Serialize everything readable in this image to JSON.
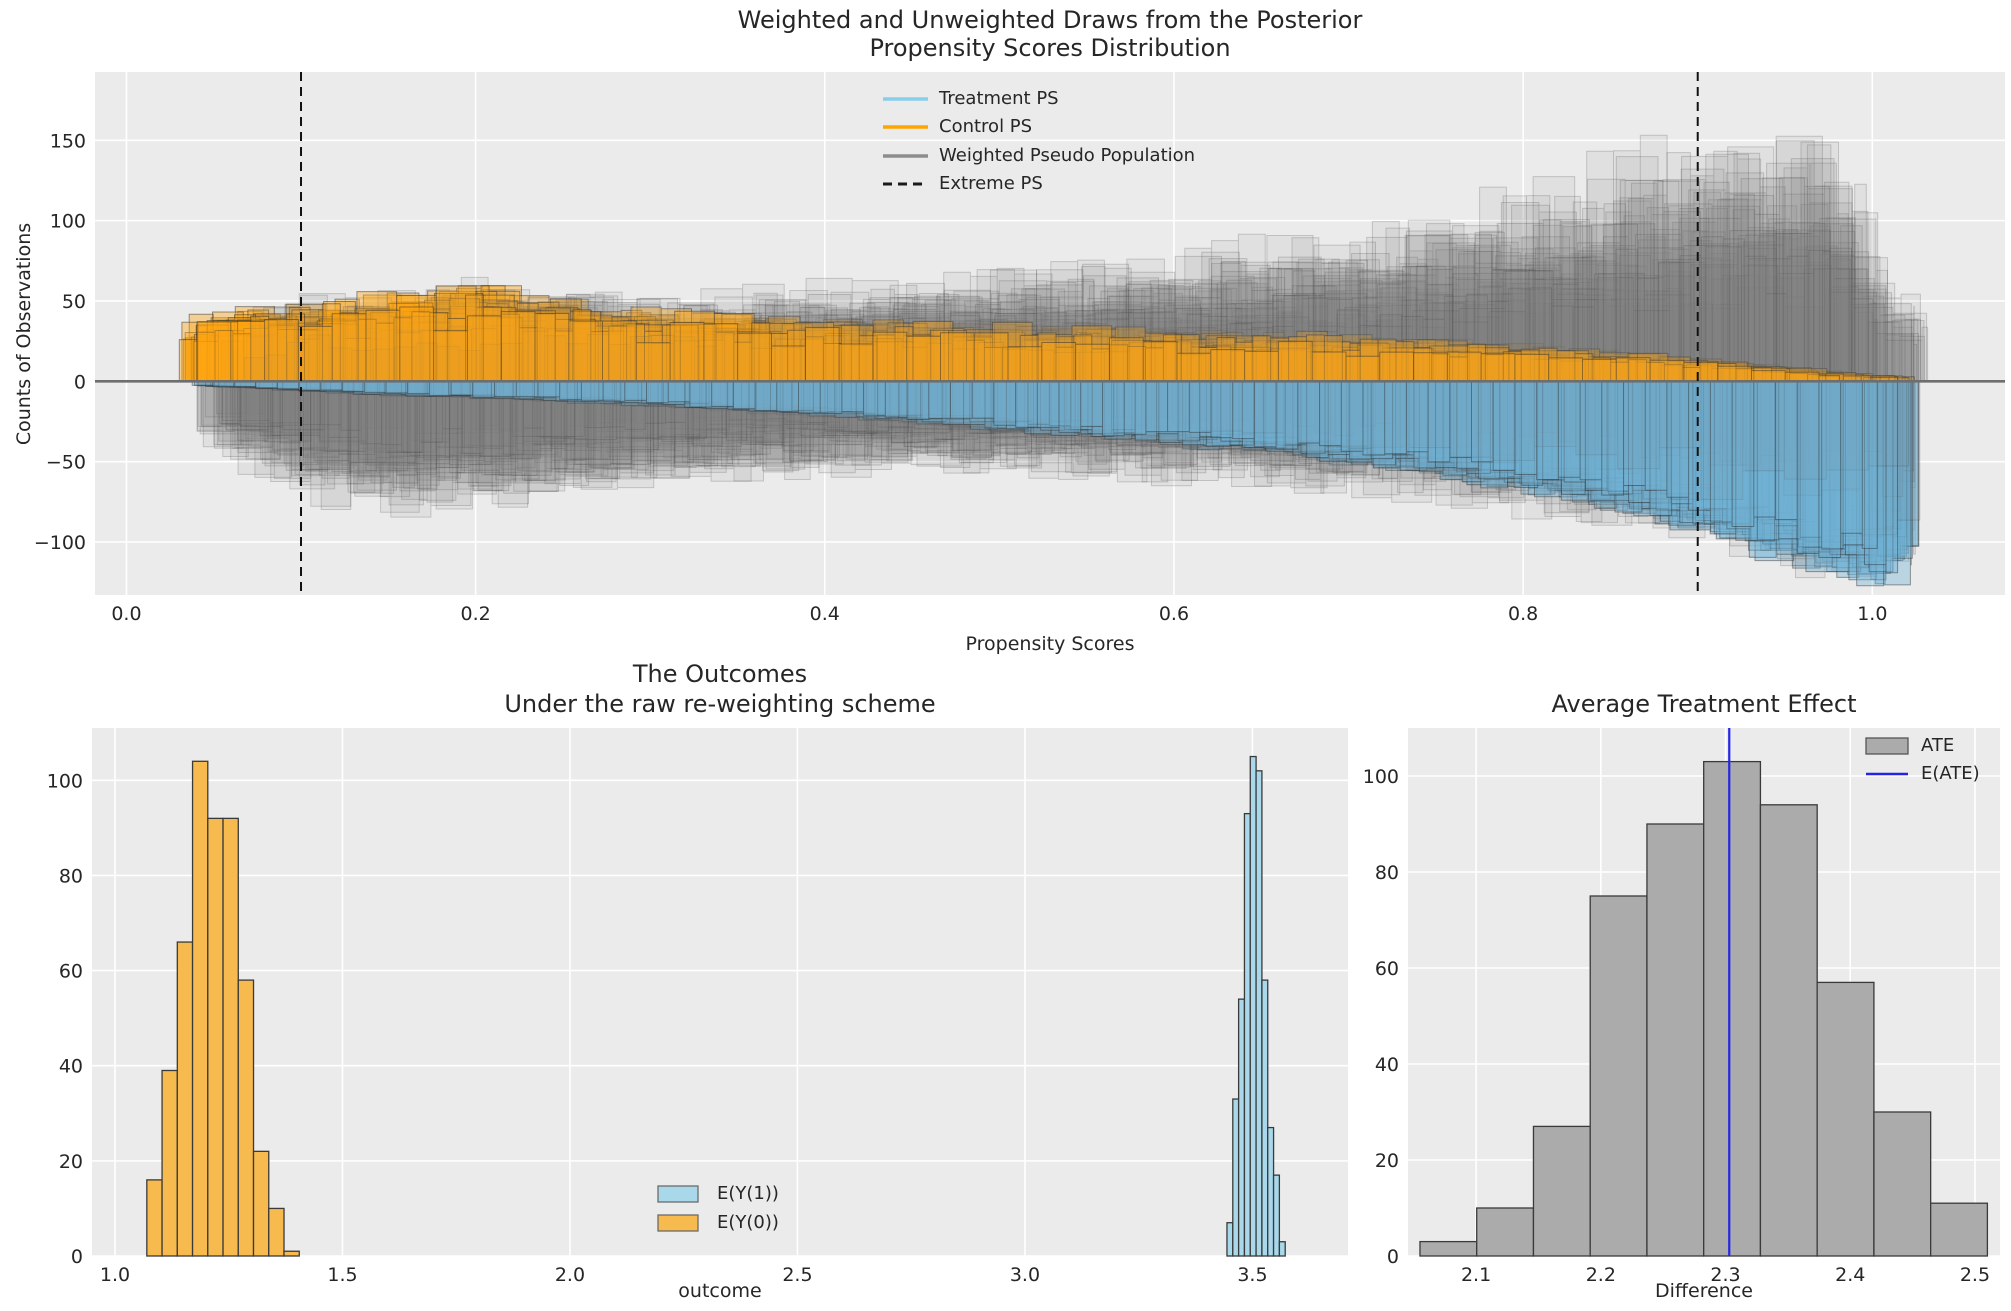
{
  "figure": {
    "background": "#ffffff",
    "axes_background": "#EBEBEB",
    "grid_color": "#ffffff",
    "text_color": "#262626",
    "render_seed": 9
  },
  "chart_data": [
    {
      "id": "ps_distribution",
      "type": "histogram-ensemble-mirror",
      "title_line1": "Weighted and Unweighted Draws from the Posterior",
      "title_line2": "Propensity Scores Distribution",
      "xlabel": "Propensity Scores",
      "ylabel": "Counts of Observations",
      "xlim": [
        -0.018,
        1.076
      ],
      "ylim": [
        -133,
        192.5
      ],
      "xticks": [
        0.0,
        0.2,
        0.4,
        0.6,
        0.8,
        1.0
      ],
      "xtick_labels": [
        "0.0",
        "0.2",
        "0.4",
        "0.6",
        "0.8",
        "1.0"
      ],
      "yticks": [
        -100,
        -50,
        0,
        50,
        100,
        150
      ],
      "ytick_labels": [
        "−100",
        "−50",
        "0",
        "50",
        "100",
        "150"
      ],
      "grid": true,
      "legend_position": "upper center",
      "legend": [
        {
          "label": "Treatment PS",
          "color": "#87CEEB",
          "type": "line"
        },
        {
          "label": "Control PS",
          "color": "#FFA500",
          "type": "line"
        },
        {
          "label": "Weighted Pseudo Population",
          "color": "#8C8C8C",
          "type": "line"
        },
        {
          "label": "Extreme PS",
          "color": "#1a1a1a",
          "type": "dashed-line"
        }
      ],
      "extreme_ps_lines": [
        0.1,
        0.9
      ],
      "zero_line": 0,
      "n_posterior_draws": 26,
      "series": {
        "control": {
          "name": "Control PS",
          "side": "up",
          "fill": "rgba(255,166,18,0.40)",
          "edge": "rgba(45,45,45,0.50)",
          "support": [
            0.03,
            1.0
          ],
          "start_jitter": 0.02,
          "end_jitter": 0.05,
          "binw_range": [
            0.01,
            0.026
          ],
          "draw_scale": [
            0.72,
            1.18
          ],
          "bin_scale": [
            0.72,
            1.18
          ],
          "envelope_x": [
            0.03,
            0.06,
            0.1,
            0.14,
            0.18,
            0.21,
            0.24,
            0.28,
            0.32,
            0.36,
            0.4,
            0.45,
            0.5,
            0.55,
            0.6,
            0.65,
            0.7,
            0.75,
            0.8,
            0.85,
            0.9,
            0.95,
            1.0
          ],
          "envelope_h": [
            31,
            36,
            39,
            42,
            46,
            48,
            42,
            37,
            34,
            32,
            31,
            29,
            28,
            27,
            26,
            25,
            23,
            21,
            18,
            15,
            11,
            7,
            3
          ]
        },
        "treatment": {
          "name": "Treatment PS",
          "side": "down",
          "fill": "rgba(112,178,212,0.40)",
          "edge": "rgba(40,40,40,0.45)",
          "support": [
            0.035,
            1.012
          ],
          "start_jitter": 0.03,
          "end_jitter": 0.03,
          "binw_range": [
            0.01,
            0.026
          ],
          "draw_scale": [
            0.86,
            1.1
          ],
          "bin_scale": [
            0.9,
            1.1
          ],
          "envelope_x": [
            0.035,
            0.08,
            0.12,
            0.16,
            0.2,
            0.25,
            0.3,
            0.35,
            0.4,
            0.45,
            0.5,
            0.55,
            0.6,
            0.65,
            0.7,
            0.75,
            0.8,
            0.84,
            0.88,
            0.92,
            0.96,
            1.0,
            1.012
          ],
          "envelope_h": [
            2,
            4,
            6,
            8,
            9,
            11,
            13,
            16,
            19,
            22,
            26,
            30,
            34,
            38,
            44,
            50,
            59,
            66,
            75,
            87,
            99,
            107,
            108
          ]
        },
        "weighted_up": {
          "name": "Weighted Pseudo Population (above)",
          "side": "up",
          "fill": "rgba(128,128,128,0.10)",
          "edge": "rgba(60,60,60,0.22)",
          "support": [
            0.045,
            1.01
          ],
          "start_jitter": 0.03,
          "end_jitter": 0.05,
          "binw_range": [
            0.011,
            0.028
          ],
          "draw_scale": [
            0.62,
            1.28
          ],
          "bin_scale": [
            0.66,
            1.3
          ],
          "envelope_x": [
            0.045,
            0.08,
            0.12,
            0.16,
            0.2,
            0.25,
            0.3,
            0.35,
            0.4,
            0.45,
            0.5,
            0.55,
            0.6,
            0.65,
            0.7,
            0.75,
            0.8,
            0.84,
            0.88,
            0.92,
            0.95,
            0.98,
            1.0,
            1.01
          ],
          "envelope_h": [
            24,
            31,
            35,
            38,
            40,
            38,
            36,
            38,
            40,
            42,
            45,
            48,
            52,
            56,
            62,
            68,
            78,
            86,
            94,
            100,
            106,
            96,
            66,
            40
          ]
        },
        "weighted_down": {
          "name": "Weighted Pseudo Population (below)",
          "side": "down",
          "fill": "rgba(128,128,128,0.10)",
          "edge": "rgba(60,60,60,0.22)",
          "support": [
            0.04,
            1.01
          ],
          "start_jitter": 0.03,
          "end_jitter": 0.04,
          "binw_range": [
            0.011,
            0.028
          ],
          "draw_scale": [
            0.66,
            1.24
          ],
          "bin_scale": [
            0.7,
            1.2
          ],
          "envelope_x": [
            0.04,
            0.08,
            0.12,
            0.16,
            0.2,
            0.25,
            0.3,
            0.35,
            0.4,
            0.45,
            0.5,
            0.55,
            0.6,
            0.65,
            0.7,
            0.75,
            0.8,
            0.85,
            0.9,
            0.94,
            0.98,
            1.01
          ],
          "envelope_h": [
            26,
            44,
            56,
            62,
            58,
            52,
            48,
            45,
            43,
            42,
            42,
            43,
            45,
            47,
            50,
            54,
            60,
            67,
            74,
            81,
            87,
            90
          ]
        }
      }
    },
    {
      "id": "outcomes",
      "type": "histogram",
      "title_line1": "The Outcomes",
      "title_line2": "Under the raw re-weighting scheme",
      "xlabel": "outcome",
      "xlim": [
        0.9495,
        3.71
      ],
      "ylim": [
        0,
        111
      ],
      "xticks": [
        1.0,
        1.5,
        2.0,
        2.5,
        3.0,
        3.5
      ],
      "xtick_labels": [
        "1.0",
        "1.5",
        "2.0",
        "2.5",
        "3.0",
        "3.5"
      ],
      "yticks": [
        0,
        20,
        40,
        60,
        80,
        100
      ],
      "ytick_labels": [
        "0",
        "20",
        "40",
        "60",
        "80",
        "100"
      ],
      "grid": true,
      "legend_position": "lower center",
      "legend": [
        {
          "label": "E(Y(1))",
          "color": "#A8D8EA",
          "type": "patch"
        },
        {
          "label": "E(Y(0))",
          "color": "#F7BA4E",
          "type": "patch"
        }
      ],
      "series": [
        {
          "name": "E(Y(1))",
          "fill": "#A8D8EA",
          "edge": "#3a3a3a",
          "bin_start": 3.444,
          "bin_width": 0.0128,
          "counts": [
            7,
            33,
            54,
            93,
            105,
            102,
            58,
            27,
            17,
            3
          ]
        },
        {
          "name": "E(Y(0))",
          "fill": "#F7BA4E",
          "edge": "#3a3a3a",
          "bin_start": 1.07,
          "bin_width": 0.0335,
          "counts": [
            16,
            39,
            66,
            104,
            92,
            92,
            58,
            22,
            10,
            1
          ]
        }
      ]
    },
    {
      "id": "ate",
      "type": "histogram",
      "title_line1": "Average Treatment Effect",
      "xlabel": "Difference",
      "xlim": [
        2.0454,
        2.5201
      ],
      "ylim": [
        0,
        110
      ],
      "xticks": [
        2.1,
        2.2,
        2.3,
        2.4,
        2.5
      ],
      "xtick_labels": [
        "2.1",
        "2.2",
        "2.3",
        "2.4",
        "2.5"
      ],
      "yticks": [
        0,
        20,
        40,
        60,
        80,
        100
      ],
      "ytick_labels": [
        "0",
        "20",
        "40",
        "60",
        "80",
        "100"
      ],
      "grid": true,
      "legend_position": "upper right",
      "legend": [
        {
          "label": "ATE",
          "color": "#ABABAB",
          "type": "patch"
        },
        {
          "label": "E(ATE)",
          "color": "#2424E8",
          "type": "line"
        }
      ],
      "series": [
        {
          "name": "ATE",
          "fill": "#ABABAB",
          "edge": "#3a3a3a",
          "bin_start": 2.055,
          "bin_width": 0.0455,
          "counts": [
            3,
            10,
            27,
            75,
            90,
            103,
            94,
            57,
            30,
            11
          ]
        }
      ],
      "e_ate_line": 2.303
    }
  ]
}
